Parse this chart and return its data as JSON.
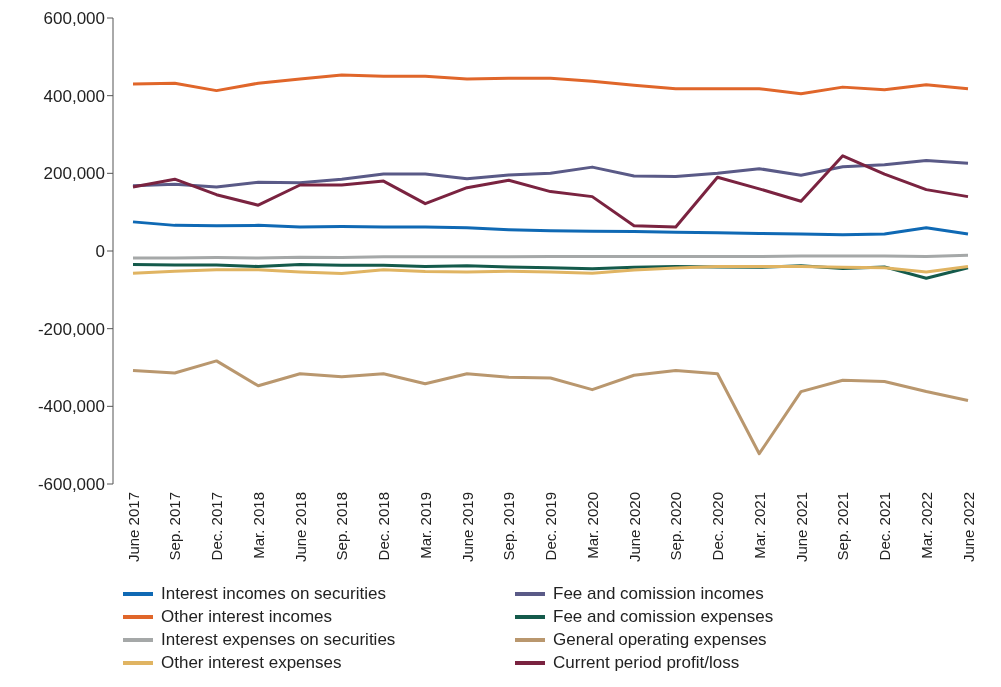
{
  "chart_data": {
    "type": "line",
    "categories": [
      "June 2017",
      "Sep. 2017",
      "Dec. 2017",
      "Mar. 2018",
      "June 2018",
      "Sep. 2018",
      "Dec. 2018",
      "Mar. 2019",
      "June 2019",
      "Sep. 2019",
      "Dec. 2019",
      "Mar. 2020",
      "June 2020",
      "Sep. 2020",
      "Dec. 2020",
      "Mar. 2021",
      "June 2021",
      "Sep. 2021",
      "Dec. 2021",
      "Mar. 2022",
      "June 2022"
    ],
    "series": [
      {
        "name": "Interest incomes on securities",
        "color": "#0f69b4",
        "values": [
          75000,
          66000,
          65000,
          66000,
          62000,
          63000,
          62000,
          62000,
          60000,
          55000,
          52000,
          51000,
          50000,
          48000,
          47000,
          45000,
          44000,
          42000,
          44000,
          60000,
          44000
        ]
      },
      {
        "name": "Fee and comission incomes",
        "color": "#5a5a87",
        "values": [
          168000,
          172000,
          165000,
          177000,
          176000,
          185000,
          198000,
          198000,
          186000,
          196000,
          200000,
          216000,
          193000,
          192000,
          200000,
          212000,
          195000,
          217000,
          222000,
          233000,
          226000
        ]
      },
      {
        "name": "Other interest incomes",
        "color": "#e0662a",
        "values": [
          430000,
          432000,
          413000,
          432000,
          443000,
          453000,
          450000,
          450000,
          443000,
          445000,
          445000,
          437000,
          427000,
          418000,
          418000,
          418000,
          405000,
          422000,
          415000,
          428000,
          418000
        ]
      },
      {
        "name": "Fee and comission expenses",
        "color": "#145a4b",
        "values": [
          -35000,
          -36000,
          -36000,
          -40000,
          -35000,
          -37000,
          -37000,
          -40000,
          -38000,
          -41000,
          -43000,
          -46000,
          -42000,
          -40000,
          -41000,
          -42000,
          -38000,
          -45000,
          -41000,
          -70000,
          -43000
        ]
      },
      {
        "name": "Interest expenses on securities",
        "color": "#a5a8a8",
        "values": [
          -18000,
          -18000,
          -17000,
          -18000,
          -16000,
          -17000,
          -15000,
          -15000,
          -15000,
          -15000,
          -14000,
          -14000,
          -14000,
          -14000,
          -14000,
          -14000,
          -13000,
          -13000,
          -13000,
          -14000,
          -11000
        ]
      },
      {
        "name": "General operating expenses",
        "color": "#b9976e",
        "values": [
          -308000,
          -314000,
          -283000,
          -347000,
          -316000,
          -324000,
          -316000,
          -342000,
          -316000,
          -325000,
          -327000,
          -357000,
          -320000,
          -308000,
          -316000,
          -522000,
          -362000,
          -333000,
          -336000,
          -362000,
          -385000
        ]
      },
      {
        "name": "Other interest expenses",
        "color": "#e0b462",
        "values": [
          -57000,
          -52000,
          -48000,
          -48000,
          -54000,
          -58000,
          -48000,
          -53000,
          -54000,
          -52000,
          -54000,
          -57000,
          -49000,
          -44000,
          -40000,
          -40000,
          -40000,
          -42000,
          -43000,
          -54000,
          -40000
        ]
      },
      {
        "name": "Current period profit/loss",
        "color": "#7a2340",
        "values": [
          165000,
          185000,
          145000,
          118000,
          170000,
          170000,
          180000,
          122000,
          163000,
          182000,
          153000,
          140000,
          65000,
          62000,
          190000,
          160000,
          128000,
          245000,
          198000,
          158000,
          140000
        ]
      }
    ],
    "ylim": [
      -600000,
      600000
    ],
    "yticks": [
      {
        "value": -600000,
        "label": "-600,000"
      },
      {
        "value": -400000,
        "label": "-400,000"
      },
      {
        "value": -200000,
        "label": "-200,000"
      },
      0,
      {
        "value": 200000,
        "label": "200,000"
      },
      {
        "value": 400000,
        "label": "400,000"
      },
      {
        "value": 600000,
        "label": "600,000"
      }
    ],
    "grid": false,
    "legend": "bottom",
    "marker": "none",
    "line_style": "solid"
  }
}
